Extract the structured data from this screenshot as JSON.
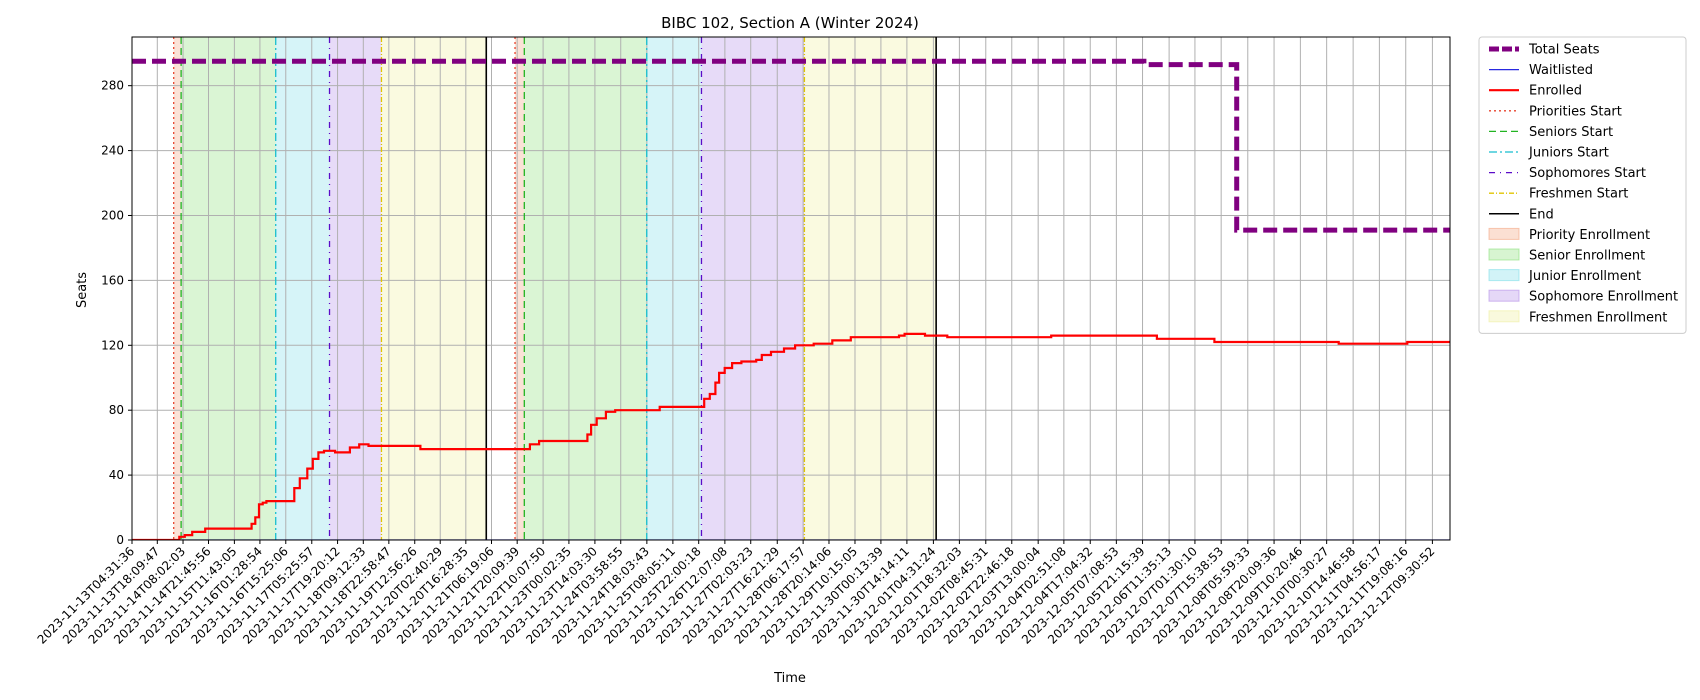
{
  "chart_data": {
    "type": "line",
    "title": "BIBC 102, Section A (Winter 2024)",
    "xlabel": "Time",
    "ylabel": "Seats",
    "ylim": [
      0,
      310
    ],
    "yticks": [
      0,
      40,
      80,
      120,
      160,
      200,
      240,
      280
    ],
    "xlim": [
      "2023-11-13T04:31:36",
      "2023-12-12T19:00:00"
    ],
    "grid": true,
    "legend_position": "outside-top-right",
    "x_tick_labels": [
      "2023-11-13T04:31:36",
      "2023-11-13T18:09:47",
      "2023-11-14T08:02:03",
      "2023-11-14T21:45:56",
      "2023-11-15T11:43:05",
      "2023-11-16T01:28:54",
      "2023-11-16T15:25:06",
      "2023-11-17T05:25:57",
      "2023-11-17T19:20:12",
      "2023-11-18T09:12:33",
      "2023-11-18T22:58:47",
      "2023-11-19T12:56:26",
      "2023-11-20T02:40:29",
      "2023-11-20T16:28:35",
      "2023-11-21T06:19:06",
      "2023-11-21T20:09:39",
      "2023-11-22T10:07:50",
      "2023-11-23T00:02:35",
      "2023-11-23T14:03:30",
      "2023-11-24T03:58:55",
      "2023-11-24T18:03:43",
      "2023-11-25T08:05:11",
      "2023-11-25T22:00:18",
      "2023-11-26T12:07:08",
      "2023-11-27T02:03:23",
      "2023-11-27T16:21:29",
      "2023-11-28T06:17:57",
      "2023-11-28T20:14:06",
      "2023-11-29T10:15:05",
      "2023-11-30T00:13:39",
      "2023-11-30T14:14:11",
      "2023-12-01T04:31:24",
      "2023-12-01T18:32:03",
      "2023-12-02T08:45:31",
      "2023-12-02T22:46:18",
      "2023-12-03T13:00:04",
      "2023-12-04T02:51:08",
      "2023-12-04T17:04:32",
      "2023-12-05T07:08:53",
      "2023-12-05T21:15:39",
      "2023-12-06T11:35:13",
      "2023-12-07T01:30:10",
      "2023-12-07T15:38:53",
      "2023-12-08T05:59:33",
      "2023-12-08T20:09:36",
      "2023-12-09T10:20:46",
      "2023-12-10T00:30:27",
      "2023-12-10T14:46:58",
      "2023-12-11T04:56:17",
      "2023-12-11T19:08:16",
      "2023-12-12T09:30:52"
    ],
    "phase_lines": [
      {
        "name": "Priorities Start",
        "times": [
          "2023-11-14T03:00:00",
          "2023-11-21T19:00:00"
        ],
        "color": "#e8432e",
        "dash": "2,3"
      },
      {
        "name": "Seniors Start",
        "times": [
          "2023-11-14T07:00:00",
          "2023-11-22T00:00:00"
        ],
        "color": "#22b422",
        "dash": "7,4"
      },
      {
        "name": "Juniors Start",
        "times": [
          "2023-11-16T10:00:00",
          "2023-11-24T18:00:00"
        ],
        "color": "#17becf",
        "dash": "8,3,2,3"
      },
      {
        "name": "Sophomores Start",
        "times": [
          "2023-11-17T15:00:00",
          "2023-11-25T23:30:00"
        ],
        "color": "#5b0cc8",
        "dash": "6,5,1,5"
      },
      {
        "name": "Freshmen Start",
        "times": [
          "2023-11-18T19:00:00",
          "2023-11-28T07:00:00"
        ],
        "color": "#e0c400",
        "dash": "5,2,1,2"
      },
      {
        "name": "End",
        "times": [
          "2023-11-21T03:30:00",
          "2023-12-01T06:00:00"
        ],
        "color": "#000000",
        "dash": ""
      }
    ],
    "shaded_regions": [
      {
        "name": "Priority Enrollment",
        "color": "#f4a582",
        "spans": [
          [
            "2023-11-14T03:00:00",
            "2023-11-14T07:00:00"
          ],
          [
            "2023-11-21T19:00:00",
            "2023-11-22T00:00:00"
          ]
        ]
      },
      {
        "name": "Senior Enrollment",
        "color": "#8be07a",
        "spans": [
          [
            "2023-11-14T07:00:00",
            "2023-11-16T10:00:00"
          ],
          [
            "2023-11-22T00:00:00",
            "2023-11-24T18:00:00"
          ]
        ]
      },
      {
        "name": "Junior Enrollment",
        "color": "#7fdde8",
        "spans": [
          [
            "2023-11-16T10:00:00",
            "2023-11-17T15:00:00"
          ],
          [
            "2023-11-24T18:00:00",
            "2023-11-25T23:30:00"
          ]
        ]
      },
      {
        "name": "Sophomore Enrollment",
        "color": "#b48ee8",
        "spans": [
          [
            "2023-11-17T15:00:00",
            "2023-11-18T19:00:00"
          ],
          [
            "2023-11-25T23:30:00",
            "2023-11-28T07:00:00"
          ]
        ]
      },
      {
        "name": "Freshmen Enrollment",
        "color": "#eeee9e",
        "spans": [
          [
            "2023-11-18T19:00:00",
            "2023-11-21T03:30:00"
          ],
          [
            "2023-11-28T07:00:00",
            "2023-12-01T06:00:00"
          ]
        ]
      }
    ],
    "series": [
      {
        "name": "Total Seats",
        "color": "#800080",
        "width": 5,
        "dash": "14,6",
        "step": true,
        "points": [
          [
            "2023-11-13T04:31:36",
            295
          ],
          [
            "2023-12-05T22:00:00",
            293
          ],
          [
            "2023-12-08T00:00:00",
            191
          ],
          [
            "2023-12-12T19:00:00",
            191
          ]
        ]
      },
      {
        "name": "Waitlisted",
        "color": "#2929e0",
        "width": 1.2,
        "dash": "",
        "step": true,
        "points": [
          [
            "2023-11-13T04:31:36",
            0
          ],
          [
            "2023-12-12T19:00:00",
            0
          ]
        ]
      },
      {
        "name": "Enrolled",
        "color": "#ff0000",
        "width": 2.2,
        "dash": "",
        "step": true,
        "points": [
          [
            "2023-11-13T04:31:36",
            0
          ],
          [
            "2023-11-14T04:00:00",
            0
          ],
          [
            "2023-11-14T06:00:00",
            2
          ],
          [
            "2023-11-14T09:00:00",
            3
          ],
          [
            "2023-11-14T13:00:00",
            5
          ],
          [
            "2023-11-14T20:00:00",
            7
          ],
          [
            "2023-11-15T18:00:00",
            7
          ],
          [
            "2023-11-15T21:00:00",
            10
          ],
          [
            "2023-11-15T23:00:00",
            14
          ],
          [
            "2023-11-16T01:00:00",
            22
          ],
          [
            "2023-11-16T03:00:00",
            23
          ],
          [
            "2023-11-16T05:00:00",
            24
          ],
          [
            "2023-11-16T18:00:00",
            24
          ],
          [
            "2023-11-16T20:00:00",
            32
          ],
          [
            "2023-11-16T23:00:00",
            38
          ],
          [
            "2023-11-17T03:00:00",
            44
          ],
          [
            "2023-11-17T06:00:00",
            50
          ],
          [
            "2023-11-17T09:00:00",
            54
          ],
          [
            "2023-11-17T12:00:00",
            55
          ],
          [
            "2023-11-17T18:00:00",
            54
          ],
          [
            "2023-11-18T02:00:00",
            57
          ],
          [
            "2023-11-18T07:00:00",
            59
          ],
          [
            "2023-11-18T12:00:00",
            58
          ],
          [
            "2023-11-19T14:00:00",
            58
          ],
          [
            "2023-11-19T16:00:00",
            56
          ],
          [
            "2023-11-22T01:00:00",
            56
          ],
          [
            "2023-11-22T03:00:00",
            59
          ],
          [
            "2023-11-22T08:00:00",
            61
          ],
          [
            "2023-11-23T06:00:00",
            61
          ],
          [
            "2023-11-23T10:00:00",
            65
          ],
          [
            "2023-11-23T12:00:00",
            71
          ],
          [
            "2023-11-23T15:00:00",
            75
          ],
          [
            "2023-11-23T20:00:00",
            79
          ],
          [
            "2023-11-24T01:00:00",
            80
          ],
          [
            "2023-11-24T20:00:00",
            80
          ],
          [
            "2023-11-25T01:00:00",
            82
          ],
          [
            "2023-11-25T22:00:00",
            82
          ],
          [
            "2023-11-26T01:00:00",
            87
          ],
          [
            "2023-11-26T04:00:00",
            90
          ],
          [
            "2023-11-26T07:00:00",
            97
          ],
          [
            "2023-11-26T09:00:00",
            103
          ],
          [
            "2023-11-26T12:00:00",
            106
          ],
          [
            "2023-11-26T16:00:00",
            109
          ],
          [
            "2023-11-26T21:00:00",
            110
          ],
          [
            "2023-11-27T05:00:00",
            111
          ],
          [
            "2023-11-27T08:00:00",
            114
          ],
          [
            "2023-11-27T13:00:00",
            116
          ],
          [
            "2023-11-27T20:00:00",
            118
          ],
          [
            "2023-11-28T02:00:00",
            120
          ],
          [
            "2023-11-28T12:00:00",
            121
          ],
          [
            "2023-11-28T22:00:00",
            123
          ],
          [
            "2023-11-29T05:00:00",
            123
          ],
          [
            "2023-11-29T08:00:00",
            125
          ],
          [
            "2023-11-30T08:00:00",
            125
          ],
          [
            "2023-11-30T10:00:00",
            126
          ],
          [
            "2023-11-30T13:00:00",
            127
          ],
          [
            "2023-12-01T00:00:00",
            126
          ],
          [
            "2023-12-01T12:00:00",
            125
          ],
          [
            "2023-12-03T18:00:00",
            125
          ],
          [
            "2023-12-03T20:00:00",
            126
          ],
          [
            "2023-12-06T02:00:00",
            126
          ],
          [
            "2023-12-06T05:00:00",
            124
          ],
          [
            "2023-12-07T10:00:00",
            124
          ],
          [
            "2023-12-07T12:00:00",
            122
          ],
          [
            "2023-12-10T05:00:00",
            122
          ],
          [
            "2023-12-10T07:00:00",
            121
          ],
          [
            "2023-12-11T18:00:00",
            121
          ],
          [
            "2023-12-11T20:00:00",
            122
          ],
          [
            "2023-12-12T19:00:00",
            122
          ]
        ]
      }
    ],
    "legend": [
      {
        "label": "Total Seats",
        "kind": "line",
        "color": "#800080",
        "width": 5,
        "dash": "10,3"
      },
      {
        "label": "Waitlisted",
        "kind": "line",
        "color": "#2929e0",
        "width": 1.2,
        "dash": ""
      },
      {
        "label": "Enrolled",
        "kind": "line",
        "color": "#ff0000",
        "width": 2.2,
        "dash": ""
      },
      {
        "label": "Priorities Start",
        "kind": "line",
        "color": "#e8432e",
        "width": 1.3,
        "dash": "2,3"
      },
      {
        "label": "Seniors Start",
        "kind": "line",
        "color": "#22b422",
        "width": 1.3,
        "dash": "7,4"
      },
      {
        "label": "Juniors Start",
        "kind": "line",
        "color": "#17becf",
        "width": 1.3,
        "dash": "8,3,2,3"
      },
      {
        "label": "Sophomores Start",
        "kind": "line",
        "color": "#5b0cc8",
        "width": 1.3,
        "dash": "6,5,1,5"
      },
      {
        "label": "Freshmen Start",
        "kind": "line",
        "color": "#e0c400",
        "width": 1.3,
        "dash": "5,2,1,2"
      },
      {
        "label": "End",
        "kind": "line",
        "color": "#000000",
        "width": 1.5,
        "dash": ""
      },
      {
        "label": "Priority Enrollment",
        "kind": "patch",
        "color": "#f4a582"
      },
      {
        "label": "Senior Enrollment",
        "kind": "patch",
        "color": "#8be07a"
      },
      {
        "label": "Junior Enrollment",
        "kind": "patch",
        "color": "#7fdde8"
      },
      {
        "label": "Sophomore Enrollment",
        "kind": "patch",
        "color": "#b48ee8"
      },
      {
        "label": "Freshmen Enrollment",
        "kind": "patch",
        "color": "#eeee9e"
      }
    ]
  }
}
